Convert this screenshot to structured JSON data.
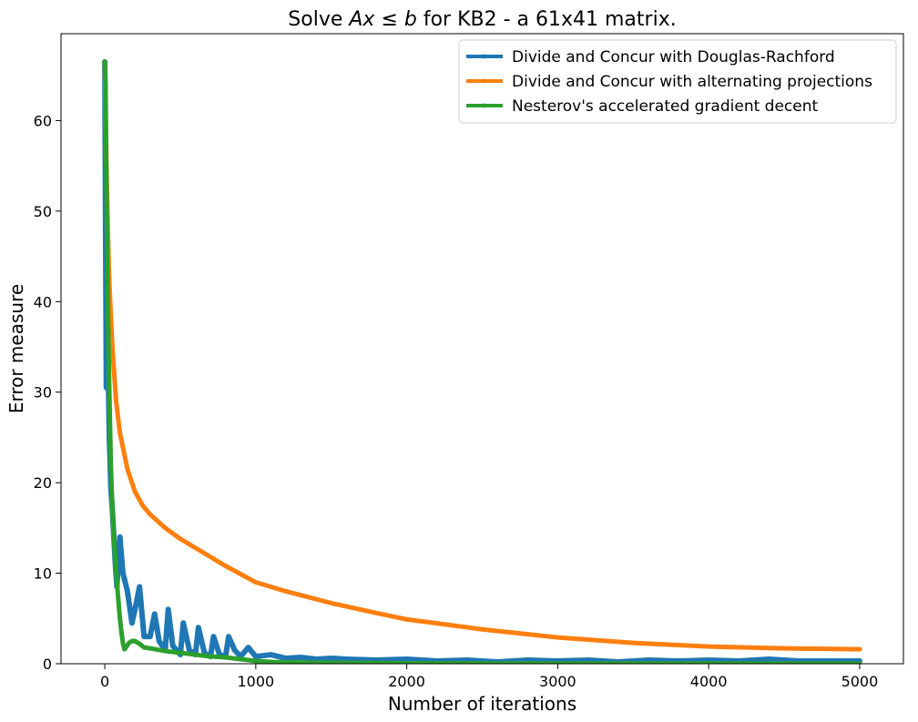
{
  "chart_data": {
    "type": "line",
    "title": "Solve Ax ≤ b for KB2 - a 61x41 matrix.",
    "xlabel": "Number of iterations",
    "ylabel": "Error measure",
    "xlim": [
      -290,
      5290
    ],
    "ylim": [
      0,
      69.6
    ],
    "xticks": [
      0,
      1000,
      2000,
      3000,
      4000,
      5000
    ],
    "yticks": [
      0,
      10,
      20,
      30,
      40,
      50,
      60
    ],
    "grid": false,
    "legend_position": "top-right",
    "series": [
      {
        "name": "Divide and Concur with Douglas-Rachford",
        "color": "#1f77b4",
        "shape": "damped-oscillation",
        "x": [
          0,
          10,
          20,
          30,
          40,
          50,
          60,
          70,
          80,
          100,
          120,
          150,
          180,
          200,
          230,
          260,
          300,
          330,
          360,
          400,
          420,
          450,
          500,
          520,
          560,
          600,
          620,
          660,
          700,
          720,
          760,
          800,
          820,
          860,
          900,
          950,
          1000,
          1100,
          1200,
          1300,
          1400,
          1500,
          1600,
          1800,
          2000,
          2200,
          2400,
          2600,
          2800,
          3000,
          3200,
          3400,
          3600,
          3800,
          4000,
          4200,
          4400,
          4600,
          4800,
          5000
        ],
        "y": [
          66.5,
          30.5,
          35.0,
          25.0,
          19.5,
          17.0,
          14.0,
          11.0,
          8.5,
          14.0,
          10.0,
          8.0,
          4.5,
          6.0,
          8.5,
          3.0,
          3.0,
          5.5,
          2.5,
          1.5,
          6.0,
          2.0,
          1.0,
          4.5,
          1.5,
          1.0,
          4.0,
          1.2,
          0.8,
          3.0,
          1.0,
          0.8,
          3.0,
          1.5,
          0.8,
          1.8,
          0.8,
          1.0,
          0.6,
          0.7,
          0.5,
          0.6,
          0.5,
          0.4,
          0.5,
          0.3,
          0.4,
          0.2,
          0.4,
          0.3,
          0.4,
          0.2,
          0.4,
          0.3,
          0.4,
          0.3,
          0.5,
          0.3,
          0.3,
          0.3
        ]
      },
      {
        "name": "Divide and Concur with alternating projections",
        "color": "#ff7f0e",
        "shape": "smooth-decay",
        "x": [
          0,
          10,
          20,
          30,
          50,
          75,
          100,
          150,
          200,
          250,
          300,
          400,
          500,
          600,
          800,
          1000,
          1200,
          1500,
          1800,
          2000,
          2500,
          3000,
          3500,
          4000,
          4500,
          5000
        ],
        "y": [
          66.5,
          56.0,
          48.0,
          42.0,
          35.0,
          29.0,
          25.5,
          21.5,
          19.0,
          17.5,
          16.5,
          15.0,
          13.8,
          12.8,
          10.8,
          9.0,
          8.0,
          6.7,
          5.6,
          4.9,
          3.8,
          2.9,
          2.3,
          1.9,
          1.7,
          1.6
        ]
      },
      {
        "name": "Nesterov's accelerated gradient decent",
        "color": "#2ca02c",
        "shape": "fast-decay",
        "x": [
          0,
          5,
          10,
          20,
          30,
          40,
          50,
          60,
          70,
          80,
          90,
          100,
          110,
          120,
          130,
          140,
          160,
          180,
          200,
          230,
          260,
          300,
          400,
          500,
          600,
          700,
          800,
          900,
          1000,
          1100,
          1200,
          1500,
          2000,
          2500,
          3000,
          4000,
          5000
        ],
        "y": [
          66.5,
          64.0,
          55.0,
          40.0,
          30.0,
          22.0,
          17.0,
          14.0,
          11.5,
          9.0,
          7.0,
          5.0,
          3.5,
          2.3,
          1.6,
          1.8,
          2.3,
          2.5,
          2.5,
          2.2,
          1.8,
          1.7,
          1.4,
          1.2,
          1.0,
          0.8,
          0.7,
          0.5,
          0.3,
          0.2,
          0.15,
          0.1,
          0.05,
          0.03,
          0.02,
          0.02,
          0.01
        ]
      }
    ]
  }
}
